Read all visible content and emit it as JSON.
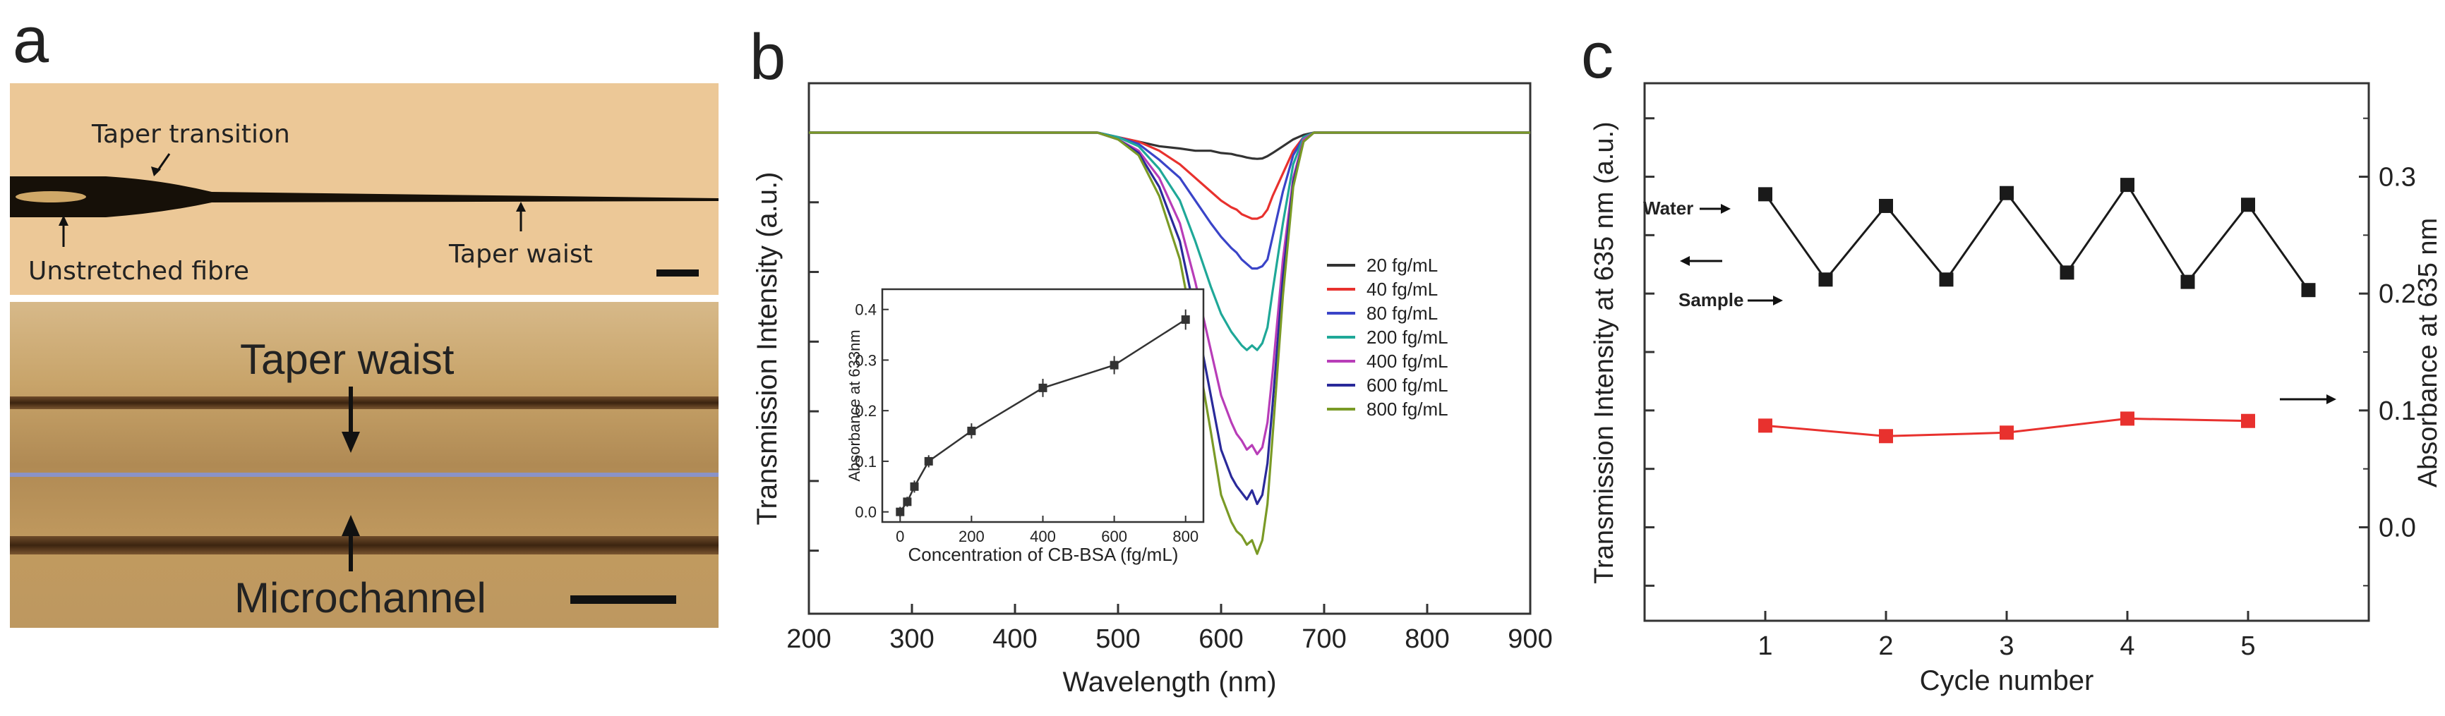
{
  "panel_labels": {
    "a": "a",
    "b": "b",
    "c": "c"
  },
  "panel_a": {
    "top_image": {
      "labels": {
        "taper_transition": "Taper transition",
        "unstretched_fibre": "Unstretched fibre",
        "taper_waist": "Taper waist"
      }
    },
    "bottom_image": {
      "labels": {
        "taper_waist": "Taper waist",
        "microchannel": "Microchannel"
      }
    }
  },
  "chart_data": [
    {
      "id": "b",
      "type": "line",
      "title": "",
      "xlabel": "Wavelength (nm)",
      "ylabel": "Transmission Intensity (a.u.)",
      "xlim": [
        200,
        900
      ],
      "xticks": [
        200,
        300,
        400,
        500,
        600,
        700,
        800,
        900
      ],
      "ylim": [
        0,
        1.05
      ],
      "yticks_labeled": false,
      "x": [
        200,
        300,
        400,
        480,
        500,
        520,
        540,
        560,
        575,
        590,
        600,
        610,
        615,
        620,
        625,
        630,
        635,
        640,
        645,
        650,
        660,
        670,
        680,
        690,
        700,
        720,
        800,
        900
      ],
      "series": [
        {
          "name": "20 fg/mL",
          "color": "#333333",
          "values": [
            1.0,
            1.0,
            1.0,
            1.0,
            0.99,
            0.98,
            0.97,
            0.965,
            0.96,
            0.96,
            0.955,
            0.953,
            0.95,
            0.948,
            0.945,
            0.943,
            0.942,
            0.943,
            0.948,
            0.955,
            0.97,
            0.985,
            0.995,
            1.0,
            1.0,
            1.0,
            1.0,
            1.0
          ]
        },
        {
          "name": "40 fg/mL",
          "color": "#e8312e",
          "values": [
            1.0,
            1.0,
            1.0,
            1.0,
            0.99,
            0.98,
            0.96,
            0.93,
            0.9,
            0.87,
            0.85,
            0.835,
            0.83,
            0.82,
            0.815,
            0.81,
            0.81,
            0.815,
            0.83,
            0.86,
            0.91,
            0.96,
            0.99,
            1.0,
            1.0,
            1.0,
            1.0,
            1.0
          ]
        },
        {
          "name": "80 fg/mL",
          "color": "#3a44c8",
          "values": [
            1.0,
            1.0,
            1.0,
            1.0,
            0.99,
            0.975,
            0.94,
            0.9,
            0.85,
            0.8,
            0.77,
            0.745,
            0.735,
            0.72,
            0.71,
            0.7,
            0.7,
            0.705,
            0.72,
            0.77,
            0.87,
            0.95,
            0.99,
            1.0,
            1.0,
            1.0,
            1.0,
            1.0
          ]
        },
        {
          "name": "200 fg/mL",
          "color": "#1fa898",
          "values": [
            1.0,
            1.0,
            1.0,
            1.0,
            0.99,
            0.97,
            0.92,
            0.85,
            0.76,
            0.66,
            0.6,
            0.56,
            0.545,
            0.53,
            0.52,
            0.53,
            0.52,
            0.535,
            0.57,
            0.65,
            0.8,
            0.93,
            0.99,
            1.0,
            1.0,
            1.0,
            1.0,
            1.0
          ]
        },
        {
          "name": "400 fg/mL",
          "color": "#b83db8",
          "values": [
            1.0,
            1.0,
            1.0,
            1.0,
            0.985,
            0.96,
            0.9,
            0.8,
            0.67,
            0.52,
            0.42,
            0.36,
            0.335,
            0.32,
            0.3,
            0.31,
            0.29,
            0.305,
            0.36,
            0.47,
            0.72,
            0.9,
            0.985,
            1.0,
            1.0,
            1.0,
            1.0,
            1.0
          ]
        },
        {
          "name": "600 fg/mL",
          "color": "#2a2a9a",
          "values": [
            1.0,
            1.0,
            1.0,
            1.0,
            0.985,
            0.955,
            0.88,
            0.76,
            0.6,
            0.42,
            0.3,
            0.24,
            0.22,
            0.205,
            0.19,
            0.21,
            0.18,
            0.2,
            0.27,
            0.4,
            0.68,
            0.89,
            0.98,
            1.0,
            1.0,
            1.0,
            1.0,
            1.0
          ]
        },
        {
          "name": "800 fg/mL",
          "color": "#7a9a26",
          "values": [
            1.0,
            1.0,
            1.0,
            1.0,
            0.985,
            0.95,
            0.86,
            0.72,
            0.54,
            0.34,
            0.2,
            0.14,
            0.12,
            0.11,
            0.09,
            0.1,
            0.07,
            0.1,
            0.18,
            0.33,
            0.64,
            0.88,
            0.98,
            1.0,
            1.0,
            1.0,
            1.0,
            1.0
          ]
        }
      ],
      "legend_position": "right-center"
    },
    {
      "id": "b-inset",
      "type": "line",
      "xlabel": "Concentration of CB-BSA (fg/mL)",
      "ylabel": "Absorbance at 633nm",
      "xlim": [
        -50,
        850
      ],
      "xticks": [
        0,
        200,
        400,
        600,
        800
      ],
      "ylim": [
        -0.02,
        0.44
      ],
      "yticks": [
        0.0,
        0.1,
        0.2,
        0.3,
        0.4
      ],
      "x": [
        0,
        20,
        40,
        80,
        200,
        400,
        600,
        800
      ],
      "values": [
        0.0,
        0.02,
        0.05,
        0.1,
        0.16,
        0.245,
        0.29,
        0.38
      ],
      "errors": [
        0.01,
        0.01,
        0.012,
        0.012,
        0.015,
        0.018,
        0.018,
        0.02
      ],
      "marker": "square",
      "color": "#333333"
    },
    {
      "id": "c",
      "type": "line",
      "xlabel": "Cycle number",
      "ylabel": "Transmission Intensity at 635 nm (a.u.)",
      "y2label": "Absorbance at 635 nm",
      "xlim": [
        0,
        6
      ],
      "xticks": [
        1,
        2,
        3,
        4,
        5
      ],
      "ylim": [
        -0.08,
        0.38
      ],
      "yticks_right": [
        0.0,
        0.1,
        0.2,
        0.3
      ],
      "series": [
        {
          "name": "Transmission",
          "axis": "left",
          "color": "#1a1a1a",
          "x": [
            1,
            1.5,
            2,
            2.5,
            3,
            3.5,
            4,
            4.5,
            5,
            5.5
          ],
          "values": [
            0.285,
            0.212,
            0.275,
            0.212,
            0.286,
            0.218,
            0.293,
            0.21,
            0.276,
            0.203
          ]
        },
        {
          "name": "Absorbance",
          "axis": "right",
          "color": "#e8312e",
          "x": [
            1,
            2,
            3,
            4,
            5
          ],
          "values": [
            0.087,
            0.078,
            0.081,
            0.093,
            0.091
          ]
        }
      ],
      "annotations": {
        "water": "Water",
        "sample": "Sample"
      }
    }
  ]
}
